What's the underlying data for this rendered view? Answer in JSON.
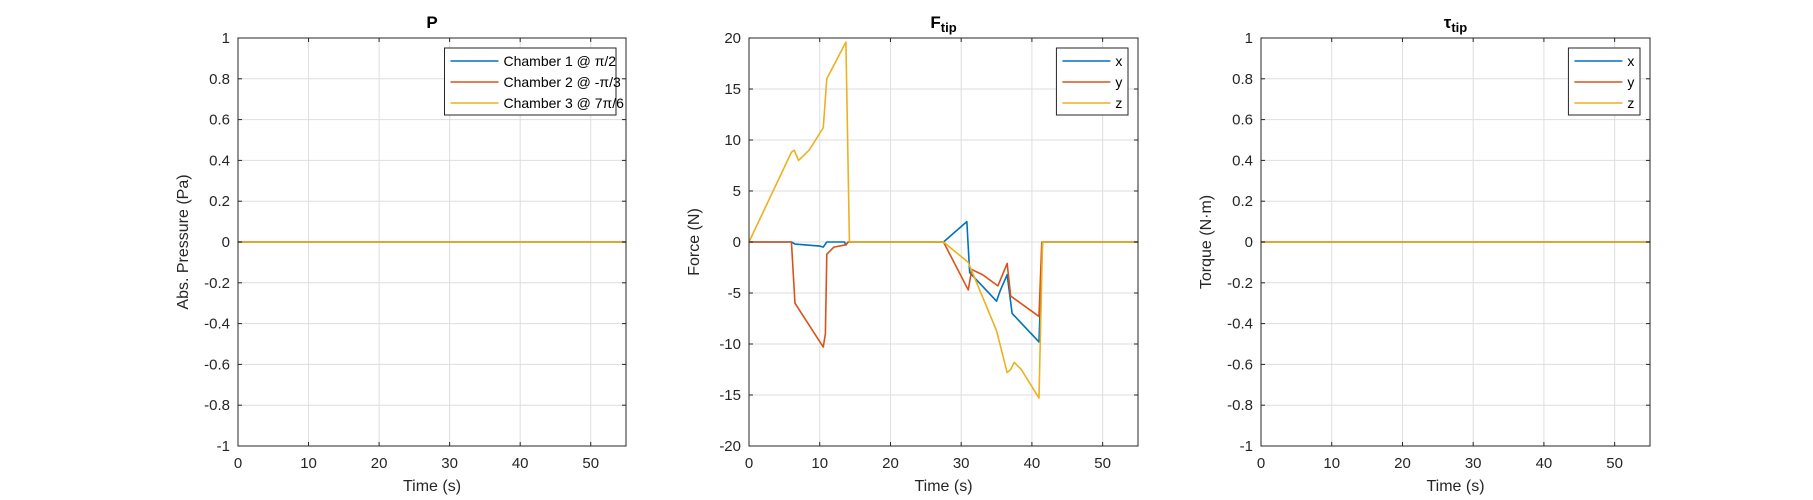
{
  "colors": {
    "blue": "#0072BD",
    "orange": "#D95319",
    "yellow": "#EDB120"
  },
  "chart_data": [
    {
      "type": "line",
      "title": "P",
      "xlabel": "Time (s)",
      "ylabel": "Abs. Pressure (Pa)",
      "xlim": [
        0,
        55
      ],
      "ylim": [
        -1,
        1
      ],
      "xticks": [
        0,
        10,
        20,
        30,
        40,
        50
      ],
      "yticks": [
        -1,
        -0.8,
        -0.6,
        -0.4,
        -0.2,
        0,
        0.2,
        0.4,
        0.6,
        0.8,
        1
      ],
      "grid": true,
      "legend": "top-right",
      "series": [
        {
          "name": "Chamber 1 @ π/2",
          "color": "#0072BD",
          "x": [
            0,
            55
          ],
          "y": [
            0,
            0
          ]
        },
        {
          "name": "Chamber 2 @ -π/3",
          "color": "#D95319",
          "x": [
            0,
            55
          ],
          "y": [
            0,
            0
          ]
        },
        {
          "name": "Chamber 3 @ 7π/6",
          "color": "#EDB120",
          "x": [
            0,
            55
          ],
          "y": [
            0,
            0
          ]
        }
      ]
    },
    {
      "type": "line",
      "title": "F",
      "title_sub": "tip",
      "xlabel": "Time (s)",
      "ylabel": "Force (N)",
      "xlim": [
        0,
        55
      ],
      "ylim": [
        -20,
        20
      ],
      "xticks": [
        0,
        10,
        20,
        30,
        40,
        50
      ],
      "yticks": [
        -20,
        -15,
        -10,
        -5,
        0,
        5,
        10,
        15,
        20
      ],
      "grid": true,
      "legend": "top-right",
      "series": [
        {
          "name": "x",
          "color": "#0072BD",
          "x": [
            0,
            6,
            6.5,
            10,
            10.5,
            11,
            13.5,
            13.7,
            14,
            27.5,
            30.8,
            31.2,
            35,
            35.5,
            36.5,
            37.2,
            41,
            41.5,
            55
          ],
          "y": [
            0,
            0,
            -0.2,
            -0.4,
            -0.5,
            0,
            0,
            -0.3,
            0,
            0,
            2,
            -3,
            -5.8,
            -4.8,
            -3.2,
            -7,
            -9.8,
            0,
            0
          ]
        },
        {
          "name": "y",
          "color": "#D95319",
          "x": [
            0,
            6,
            6.5,
            10.5,
            10.8,
            11,
            12,
            13.5,
            13.8,
            14,
            27.5,
            31,
            31.5,
            33,
            35.2,
            36.5,
            37,
            41,
            41.4,
            55
          ],
          "y": [
            0,
            0,
            -6,
            -10.3,
            -9,
            -1.2,
            -0.5,
            -0.3,
            -0.2,
            0,
            0,
            -4.7,
            -2.7,
            -3.2,
            -4.3,
            -2.1,
            -5.3,
            -7.3,
            0,
            0
          ]
        },
        {
          "name": "z",
          "color": "#EDB120",
          "x": [
            0,
            6,
            6.4,
            7,
            8.5,
            10.5,
            11,
            13.7,
            14.2,
            27.5,
            31,
            35,
            36.5,
            37,
            37.5,
            38.5,
            41,
            41.5,
            55
          ],
          "y": [
            0,
            8.8,
            9,
            8,
            9,
            11.2,
            16,
            19.6,
            0,
            0,
            -2,
            -8.7,
            -12.8,
            -12.5,
            -11.8,
            -12.5,
            -15.3,
            0,
            0
          ]
        }
      ]
    },
    {
      "type": "line",
      "title": "τ",
      "title_sub": "tip",
      "xlabel": "Time (s)",
      "ylabel": "Torque (N·m)",
      "xlim": [
        0,
        55
      ],
      "ylim": [
        -1,
        1
      ],
      "xticks": [
        0,
        10,
        20,
        30,
        40,
        50
      ],
      "yticks": [
        -1,
        -0.8,
        -0.6,
        -0.4,
        -0.2,
        0,
        0.2,
        0.4,
        0.6,
        0.8,
        1
      ],
      "grid": true,
      "legend": "top-right",
      "series": [
        {
          "name": "x",
          "color": "#0072BD",
          "x": [
            0,
            55
          ],
          "y": [
            0,
            0
          ]
        },
        {
          "name": "y",
          "color": "#D95319",
          "x": [
            0,
            55
          ],
          "y": [
            0,
            0
          ]
        },
        {
          "name": "z",
          "color": "#EDB120",
          "x": [
            0,
            55
          ],
          "y": [
            0,
            0
          ]
        }
      ]
    }
  ]
}
